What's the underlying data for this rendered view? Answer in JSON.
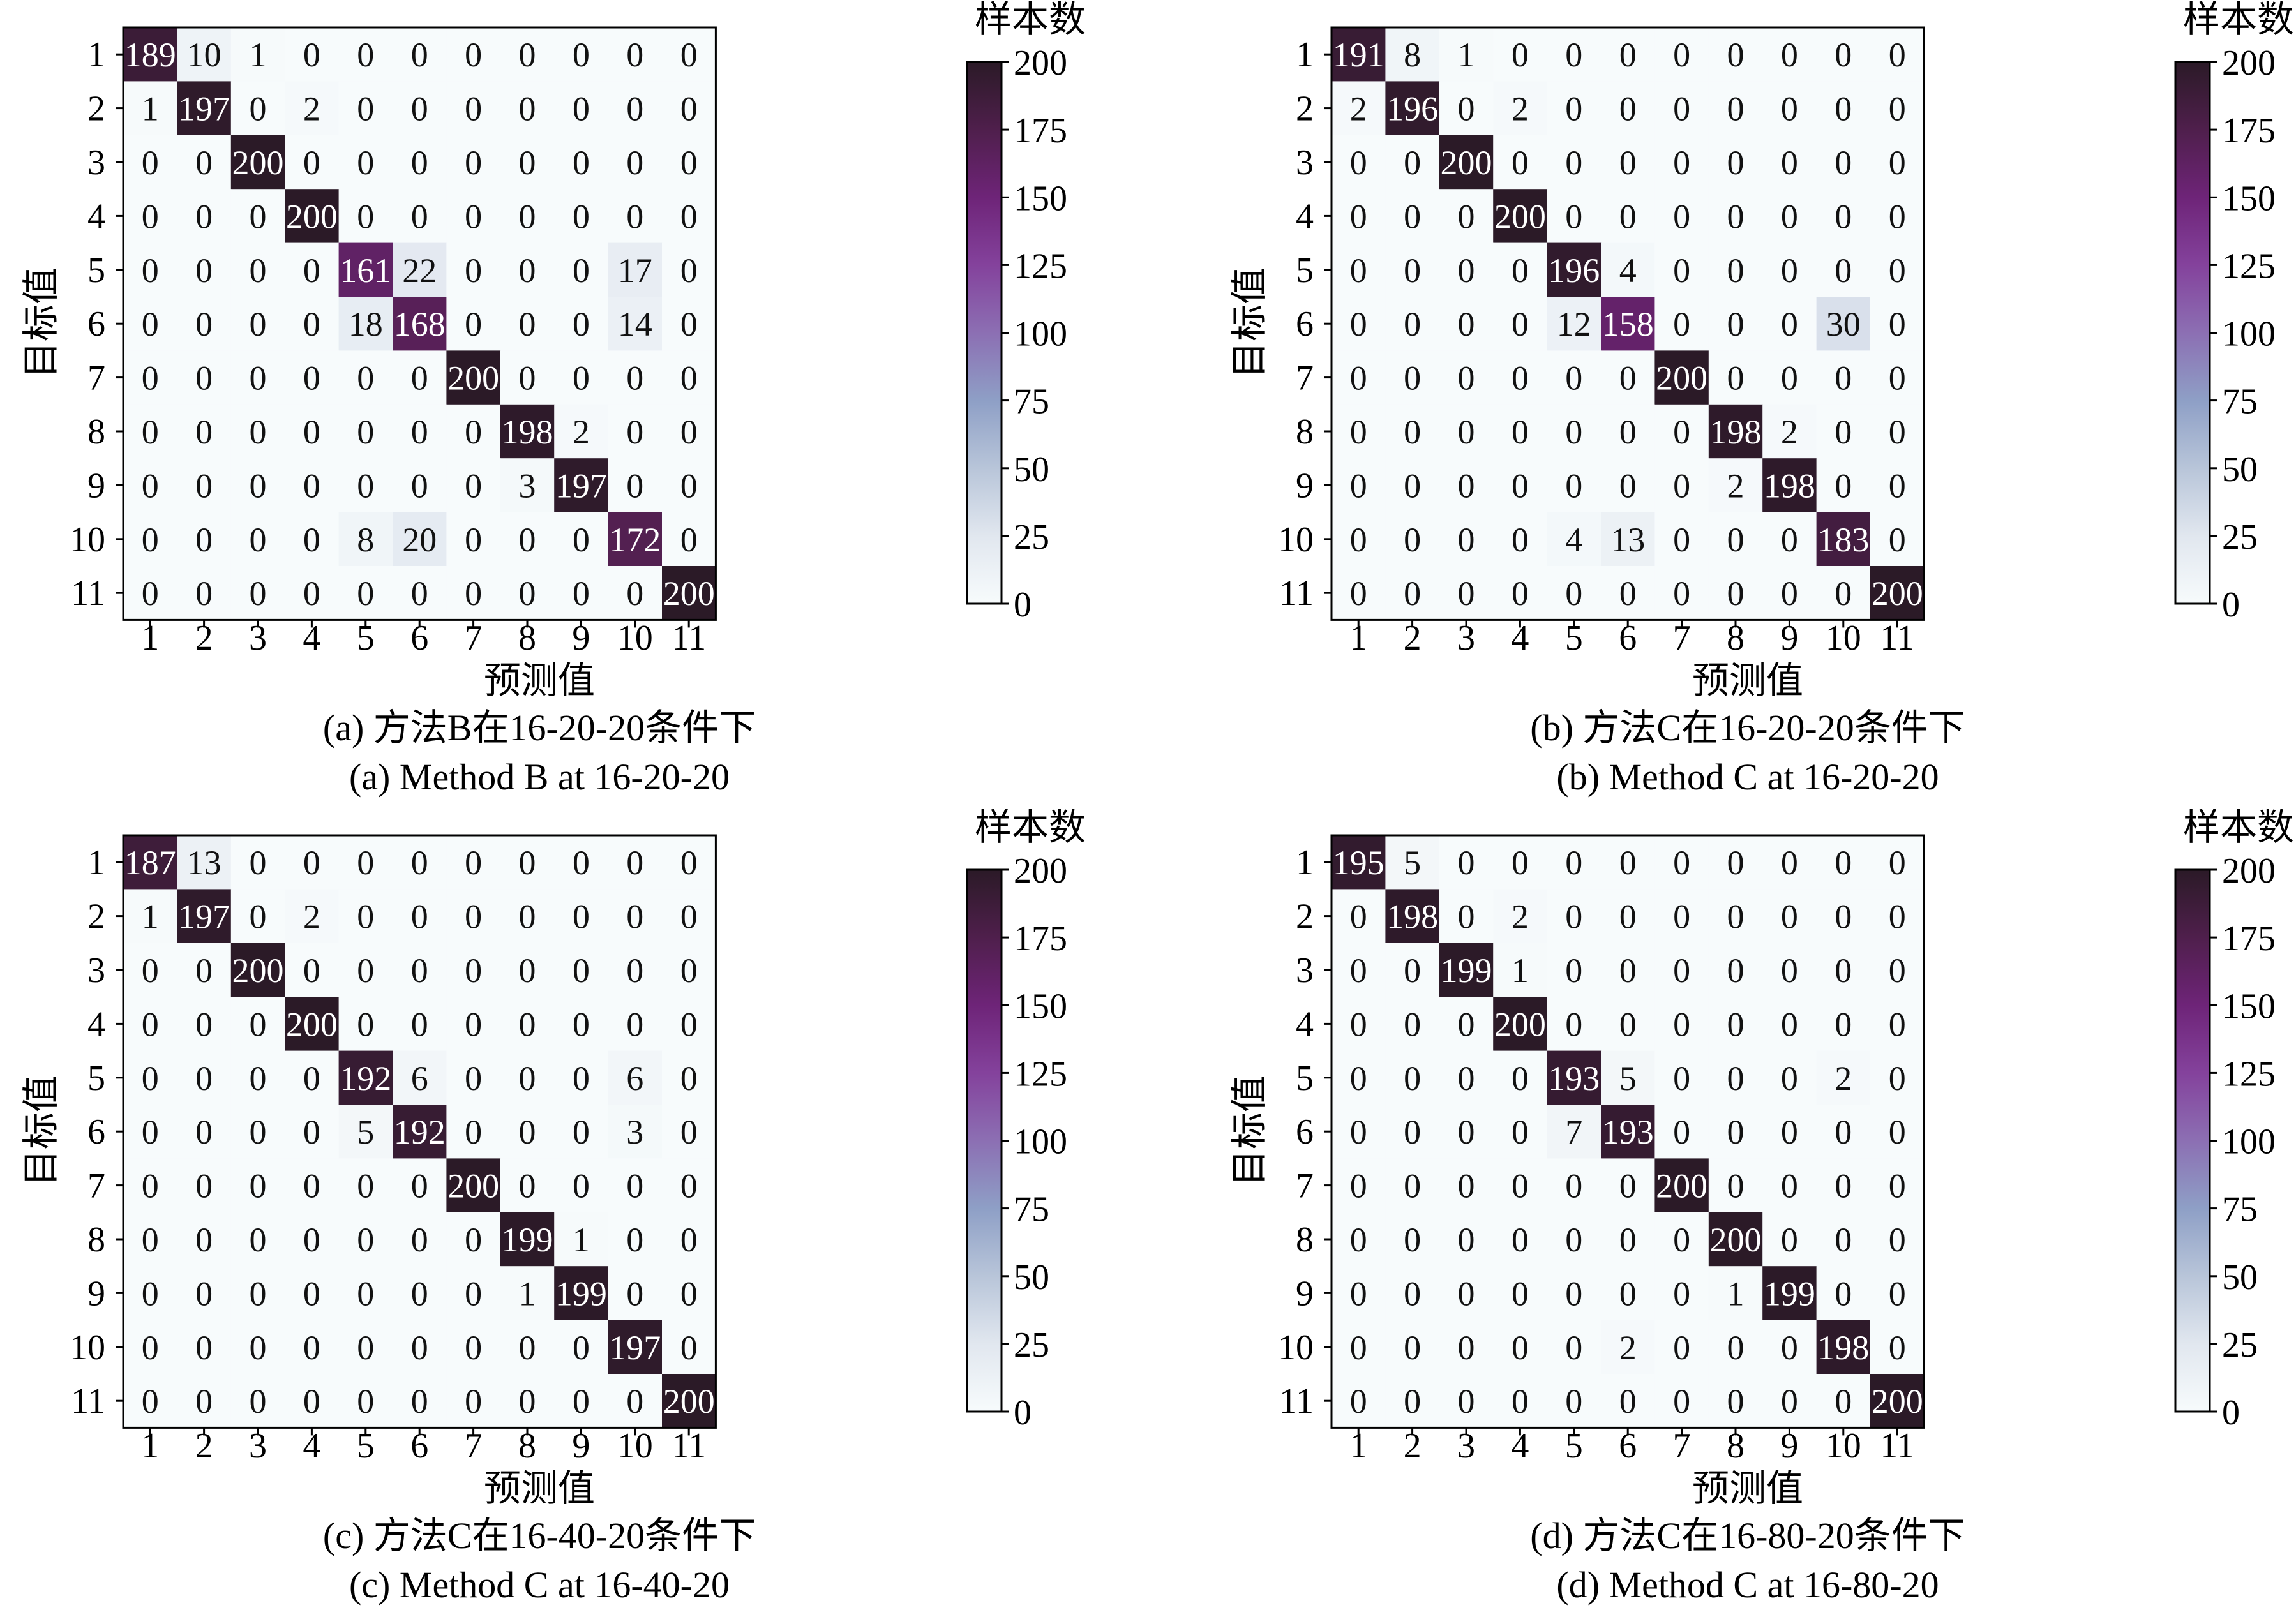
{
  "chart_data": [
    {
      "type": "heatmap",
      "caption_cn": "(a)  方法B在16-20-20条件下",
      "caption_en": "(a)  Method B at 16-20-20",
      "xlabel": "预测值",
      "ylabel": "目标值",
      "colorbar_title": "样本数",
      "x_ticks": [
        "1",
        "2",
        "3",
        "4",
        "5",
        "6",
        "7",
        "8",
        "9",
        "10",
        "11"
      ],
      "y_ticks": [
        "1",
        "2",
        "3",
        "4",
        "5",
        "6",
        "7",
        "8",
        "9",
        "10",
        "11"
      ],
      "colorbar_ticks": [
        "200",
        "175",
        "150",
        "125",
        "100",
        "75",
        "50",
        "25",
        "0"
      ],
      "vmin": 0,
      "vmax": 200,
      "matrix": [
        [
          189,
          10,
          1,
          0,
          0,
          0,
          0,
          0,
          0,
          0,
          0
        ],
        [
          1,
          197,
          0,
          2,
          0,
          0,
          0,
          0,
          0,
          0,
          0
        ],
        [
          0,
          0,
          200,
          0,
          0,
          0,
          0,
          0,
          0,
          0,
          0
        ],
        [
          0,
          0,
          0,
          200,
          0,
          0,
          0,
          0,
          0,
          0,
          0
        ],
        [
          0,
          0,
          0,
          0,
          161,
          22,
          0,
          0,
          0,
          17,
          0
        ],
        [
          0,
          0,
          0,
          0,
          18,
          168,
          0,
          0,
          0,
          14,
          0
        ],
        [
          0,
          0,
          0,
          0,
          0,
          0,
          200,
          0,
          0,
          0,
          0
        ],
        [
          0,
          0,
          0,
          0,
          0,
          0,
          0,
          198,
          2,
          0,
          0
        ],
        [
          0,
          0,
          0,
          0,
          0,
          0,
          0,
          3,
          197,
          0,
          0
        ],
        [
          0,
          0,
          0,
          0,
          8,
          20,
          0,
          0,
          0,
          172,
          0
        ],
        [
          0,
          0,
          0,
          0,
          0,
          0,
          0,
          0,
          0,
          0,
          200
        ]
      ]
    },
    {
      "type": "heatmap",
      "caption_cn": "(b)  方法C在16-20-20条件下",
      "caption_en": "(b)  Method C at 16-20-20",
      "xlabel": "预测值",
      "ylabel": "目标值",
      "colorbar_title": "样本数",
      "x_ticks": [
        "1",
        "2",
        "3",
        "4",
        "5",
        "6",
        "7",
        "8",
        "9",
        "10",
        "11"
      ],
      "y_ticks": [
        "1",
        "2",
        "3",
        "4",
        "5",
        "6",
        "7",
        "8",
        "9",
        "10",
        "11"
      ],
      "colorbar_ticks": [
        "200",
        "175",
        "150",
        "125",
        "100",
        "75",
        "50",
        "25",
        "0"
      ],
      "vmin": 0,
      "vmax": 200,
      "matrix": [
        [
          191,
          8,
          1,
          0,
          0,
          0,
          0,
          0,
          0,
          0,
          0
        ],
        [
          2,
          196,
          0,
          2,
          0,
          0,
          0,
          0,
          0,
          0,
          0
        ],
        [
          0,
          0,
          200,
          0,
          0,
          0,
          0,
          0,
          0,
          0,
          0
        ],
        [
          0,
          0,
          0,
          200,
          0,
          0,
          0,
          0,
          0,
          0,
          0
        ],
        [
          0,
          0,
          0,
          0,
          196,
          4,
          0,
          0,
          0,
          0,
          0
        ],
        [
          0,
          0,
          0,
          0,
          12,
          158,
          0,
          0,
          0,
          30,
          0
        ],
        [
          0,
          0,
          0,
          0,
          0,
          0,
          200,
          0,
          0,
          0,
          0
        ],
        [
          0,
          0,
          0,
          0,
          0,
          0,
          0,
          198,
          2,
          0,
          0
        ],
        [
          0,
          0,
          0,
          0,
          0,
          0,
          0,
          2,
          198,
          0,
          0
        ],
        [
          0,
          0,
          0,
          0,
          4,
          13,
          0,
          0,
          0,
          183,
          0
        ],
        [
          0,
          0,
          0,
          0,
          0,
          0,
          0,
          0,
          0,
          0,
          200
        ]
      ]
    },
    {
      "type": "heatmap",
      "caption_cn": "(c)  方法C在16-40-20条件下",
      "caption_en": "(c)  Method C at 16-40-20",
      "xlabel": "预测值",
      "ylabel": "目标值",
      "colorbar_title": "样本数",
      "x_ticks": [
        "1",
        "2",
        "3",
        "4",
        "5",
        "6",
        "7",
        "8",
        "9",
        "10",
        "11"
      ],
      "y_ticks": [
        "1",
        "2",
        "3",
        "4",
        "5",
        "6",
        "7",
        "8",
        "9",
        "10",
        "11"
      ],
      "colorbar_ticks": [
        "200",
        "175",
        "150",
        "125",
        "100",
        "75",
        "50",
        "25",
        "0"
      ],
      "vmin": 0,
      "vmax": 200,
      "matrix": [
        [
          187,
          13,
          0,
          0,
          0,
          0,
          0,
          0,
          0,
          0,
          0
        ],
        [
          1,
          197,
          0,
          2,
          0,
          0,
          0,
          0,
          0,
          0,
          0
        ],
        [
          0,
          0,
          200,
          0,
          0,
          0,
          0,
          0,
          0,
          0,
          0
        ],
        [
          0,
          0,
          0,
          200,
          0,
          0,
          0,
          0,
          0,
          0,
          0
        ],
        [
          0,
          0,
          0,
          0,
          192,
          6,
          0,
          0,
          0,
          6,
          0
        ],
        [
          0,
          0,
          0,
          0,
          5,
          192,
          0,
          0,
          0,
          3,
          0
        ],
        [
          0,
          0,
          0,
          0,
          0,
          0,
          200,
          0,
          0,
          0,
          0
        ],
        [
          0,
          0,
          0,
          0,
          0,
          0,
          0,
          199,
          1,
          0,
          0
        ],
        [
          0,
          0,
          0,
          0,
          0,
          0,
          0,
          1,
          199,
          0,
          0
        ],
        [
          0,
          0,
          0,
          0,
          0,
          0,
          0,
          0,
          0,
          197,
          0
        ],
        [
          0,
          0,
          0,
          0,
          0,
          0,
          0,
          0,
          0,
          0,
          200
        ]
      ]
    },
    {
      "type": "heatmap",
      "caption_cn": "(d)  方法C在16-80-20条件下",
      "caption_en": "(d)  Method C at 16-80-20",
      "xlabel": "预测值",
      "ylabel": "目标值",
      "colorbar_title": "样本数",
      "x_ticks": [
        "1",
        "2",
        "3",
        "4",
        "5",
        "6",
        "7",
        "8",
        "9",
        "10",
        "11"
      ],
      "y_ticks": [
        "1",
        "2",
        "3",
        "4",
        "5",
        "6",
        "7",
        "8",
        "9",
        "10",
        "11"
      ],
      "colorbar_ticks": [
        "200",
        "175",
        "150",
        "125",
        "100",
        "75",
        "50",
        "25",
        "0"
      ],
      "vmin": 0,
      "vmax": 200,
      "matrix": [
        [
          195,
          5,
          0,
          0,
          0,
          0,
          0,
          0,
          0,
          0,
          0
        ],
        [
          0,
          198,
          0,
          2,
          0,
          0,
          0,
          0,
          0,
          0,
          0
        ],
        [
          0,
          0,
          199,
          1,
          0,
          0,
          0,
          0,
          0,
          0,
          0
        ],
        [
          0,
          0,
          0,
          200,
          0,
          0,
          0,
          0,
          0,
          0,
          0
        ],
        [
          0,
          0,
          0,
          0,
          193,
          5,
          0,
          0,
          0,
          2,
          0
        ],
        [
          0,
          0,
          0,
          0,
          7,
          193,
          0,
          0,
          0,
          0,
          0
        ],
        [
          0,
          0,
          0,
          0,
          0,
          0,
          200,
          0,
          0,
          0,
          0
        ],
        [
          0,
          0,
          0,
          0,
          0,
          0,
          0,
          200,
          0,
          0,
          0
        ],
        [
          0,
          0,
          0,
          0,
          0,
          0,
          0,
          1,
          199,
          0,
          0
        ],
        [
          0,
          0,
          0,
          0,
          0,
          2,
          0,
          0,
          0,
          198,
          0
        ],
        [
          0,
          0,
          0,
          0,
          0,
          0,
          0,
          0,
          0,
          0,
          200
        ]
      ]
    }
  ]
}
